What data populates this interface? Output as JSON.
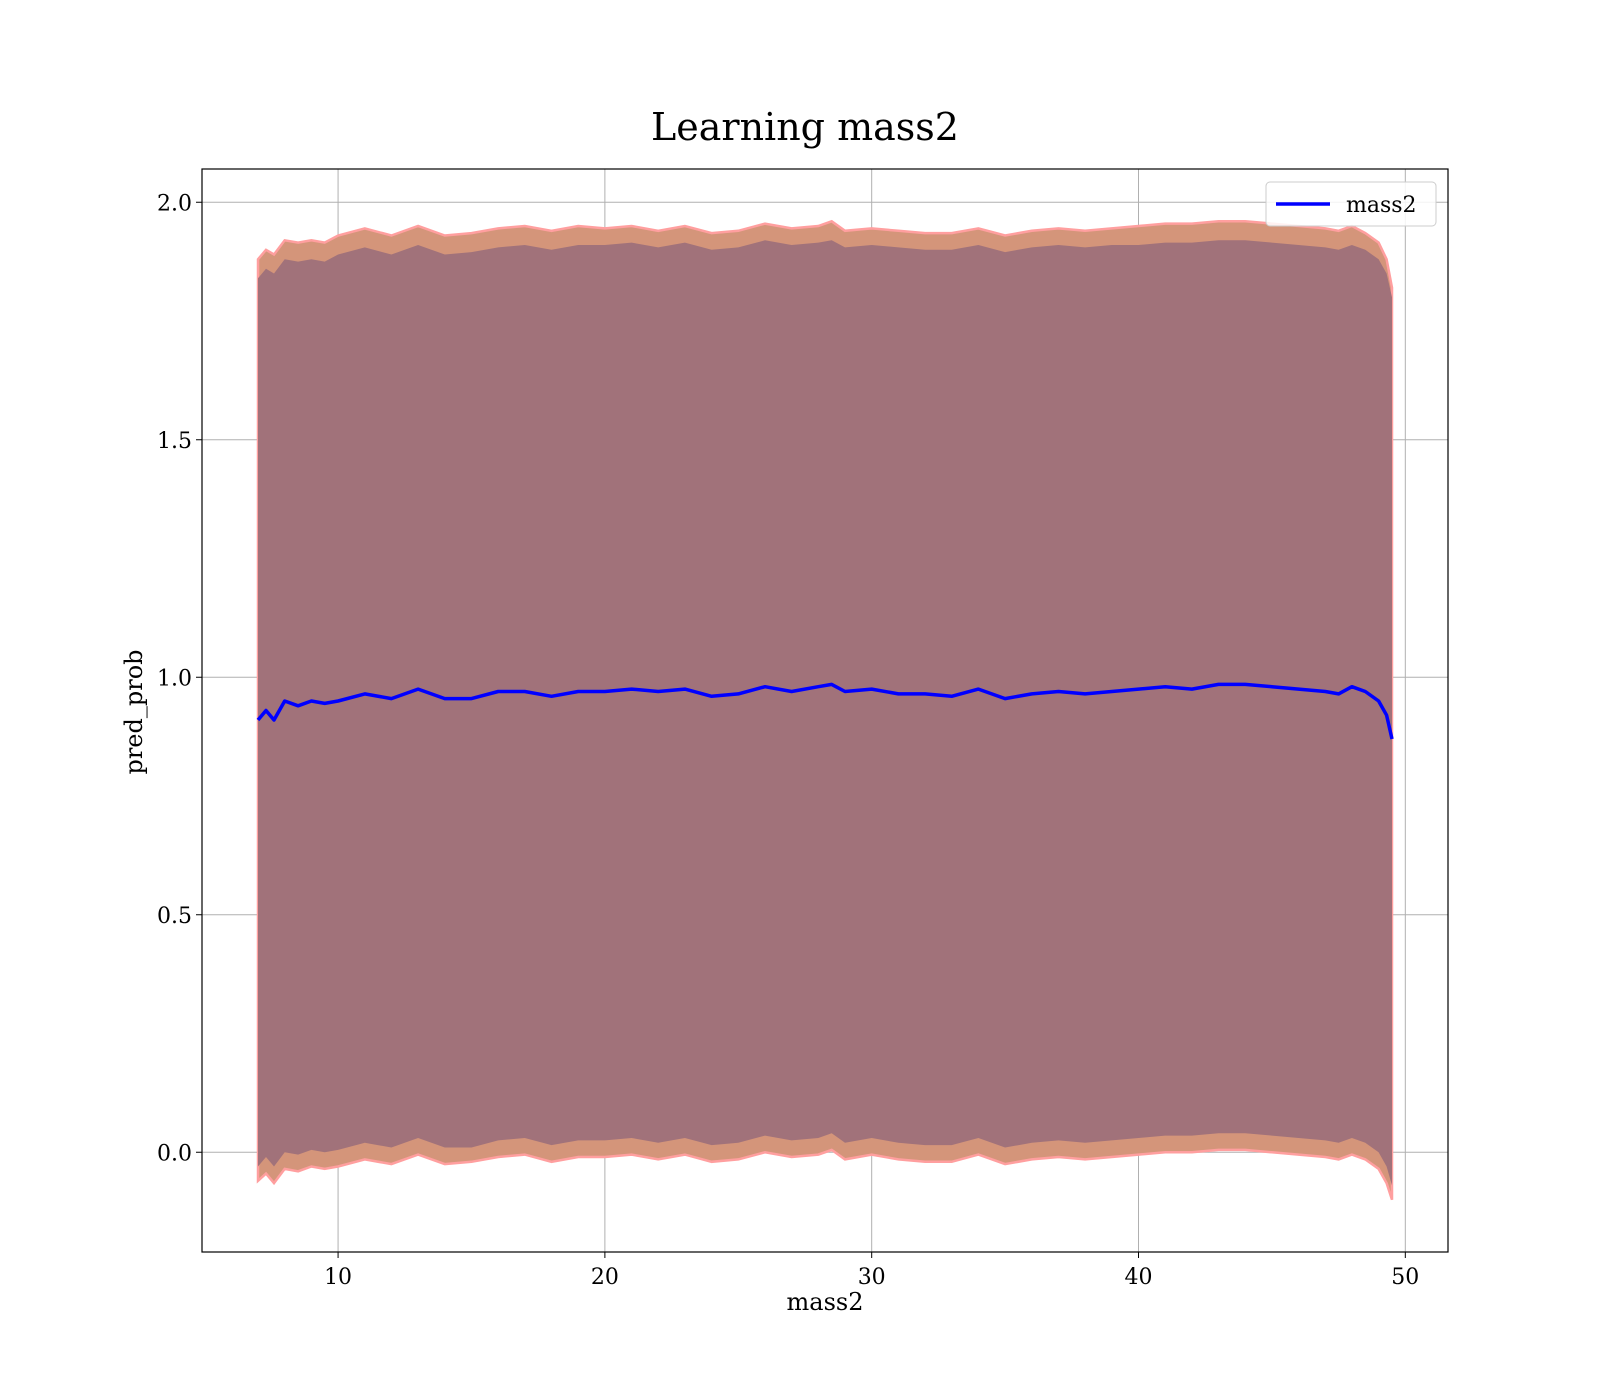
{
  "chart_data": {
    "type": "line",
    "title": "Learning mass2",
    "xlabel": "mass2",
    "ylabel": "pred_prob",
    "xlim": [
      4.9,
      51.6
    ],
    "ylim": [
      -0.21,
      2.07
    ],
    "xticks": [
      10,
      20,
      30,
      40,
      50
    ],
    "yticks": [
      0.0,
      0.5,
      1.0,
      1.5,
      2.0
    ],
    "xtick_labels": [
      "10",
      "20",
      "30",
      "40",
      "50"
    ],
    "ytick_labels": [
      "0.0",
      "0.5",
      "1.0",
      "1.5",
      "2.0"
    ],
    "grid": true,
    "legend": {
      "position": "top-right",
      "entries": [
        "mass2"
      ]
    },
    "colors": {
      "line": "#0000ff",
      "inner_band": "#a1727a",
      "outer_band": "#d4957a",
      "outer_band_edge": "#ff9f9f",
      "grid": "#b0b0b0"
    },
    "series": [
      {
        "name": "mass2",
        "x": [
          7.0,
          7.3,
          7.6,
          8.0,
          8.5,
          9.0,
          9.5,
          10.0,
          11.0,
          12.0,
          13.0,
          14.0,
          15.0,
          16.0,
          17.0,
          18.0,
          19.0,
          20.0,
          21.0,
          22.0,
          23.0,
          24.0,
          25.0,
          26.0,
          27.0,
          28.0,
          28.5,
          29.0,
          30.0,
          31.0,
          32.0,
          33.0,
          34.0,
          35.0,
          36.0,
          37.0,
          38.0,
          39.0,
          40.0,
          41.0,
          42.0,
          43.0,
          44.0,
          45.0,
          46.0,
          47.0,
          47.5,
          48.0,
          48.5,
          49.0,
          49.3,
          49.5
        ],
        "y": [
          0.91,
          0.93,
          0.91,
          0.95,
          0.94,
          0.95,
          0.945,
          0.95,
          0.965,
          0.955,
          0.975,
          0.955,
          0.955,
          0.97,
          0.97,
          0.96,
          0.97,
          0.97,
          0.975,
          0.97,
          0.975,
          0.96,
          0.965,
          0.98,
          0.97,
          0.98,
          0.985,
          0.97,
          0.975,
          0.965,
          0.965,
          0.96,
          0.975,
          0.955,
          0.965,
          0.97,
          0.965,
          0.97,
          0.975,
          0.98,
          0.975,
          0.985,
          0.985,
          0.98,
          0.975,
          0.97,
          0.965,
          0.98,
          0.97,
          0.95,
          0.92,
          0.87
        ]
      }
    ],
    "band_inner": {
      "upper": [
        1.84,
        1.86,
        1.85,
        1.88,
        1.875,
        1.88,
        1.875,
        1.89,
        1.905,
        1.89,
        1.91,
        1.89,
        1.895,
        1.905,
        1.91,
        1.9,
        1.91,
        1.91,
        1.915,
        1.905,
        1.915,
        1.9,
        1.905,
        1.92,
        1.91,
        1.915,
        1.92,
        1.905,
        1.91,
        1.905,
        1.9,
        1.9,
        1.91,
        1.895,
        1.905,
        1.91,
        1.905,
        1.91,
        1.91,
        1.915,
        1.915,
        1.92,
        1.92,
        1.915,
        1.91,
        1.905,
        1.9,
        1.91,
        1.9,
        1.88,
        1.85,
        1.8
      ],
      "lower": [
        -0.03,
        -0.01,
        -0.03,
        0.0,
        -0.005,
        0.005,
        0.0,
        0.005,
        0.02,
        0.01,
        0.03,
        0.01,
        0.01,
        0.025,
        0.03,
        0.015,
        0.025,
        0.025,
        0.03,
        0.02,
        0.03,
        0.015,
        0.02,
        0.035,
        0.025,
        0.03,
        0.04,
        0.02,
        0.03,
        0.02,
        0.015,
        0.015,
        0.03,
        0.01,
        0.02,
        0.025,
        0.02,
        0.025,
        0.03,
        0.035,
        0.035,
        0.04,
        0.04,
        0.035,
        0.03,
        0.025,
        0.02,
        0.03,
        0.02,
        0.0,
        -0.03,
        -0.07
      ]
    },
    "band_outer": {
      "upper": [
        1.88,
        1.9,
        1.89,
        1.92,
        1.915,
        1.92,
        1.915,
        1.93,
        1.945,
        1.93,
        1.95,
        1.93,
        1.935,
        1.945,
        1.95,
        1.94,
        1.95,
        1.945,
        1.95,
        1.94,
        1.95,
        1.935,
        1.94,
        1.955,
        1.945,
        1.95,
        1.96,
        1.94,
        1.945,
        1.94,
        1.935,
        1.935,
        1.945,
        1.93,
        1.94,
        1.945,
        1.94,
        1.945,
        1.95,
        1.955,
        1.955,
        1.96,
        1.96,
        1.955,
        1.95,
        1.945,
        1.94,
        1.95,
        1.935,
        1.915,
        1.88,
        1.82
      ],
      "lower": [
        -0.06,
        -0.045,
        -0.065,
        -0.035,
        -0.04,
        -0.03,
        -0.035,
        -0.03,
        -0.015,
        -0.025,
        -0.005,
        -0.025,
        -0.02,
        -0.01,
        -0.005,
        -0.02,
        -0.01,
        -0.01,
        -0.005,
        -0.015,
        -0.005,
        -0.02,
        -0.015,
        0.0,
        -0.01,
        -0.005,
        0.005,
        -0.015,
        -0.005,
        -0.015,
        -0.02,
        -0.02,
        -0.005,
        -0.025,
        -0.015,
        -0.01,
        -0.015,
        -0.01,
        -0.005,
        0.0,
        0.0,
        0.005,
        0.005,
        0.0,
        -0.005,
        -0.01,
        -0.015,
        -0.005,
        -0.015,
        -0.035,
        -0.065,
        -0.1
      ]
    }
  }
}
